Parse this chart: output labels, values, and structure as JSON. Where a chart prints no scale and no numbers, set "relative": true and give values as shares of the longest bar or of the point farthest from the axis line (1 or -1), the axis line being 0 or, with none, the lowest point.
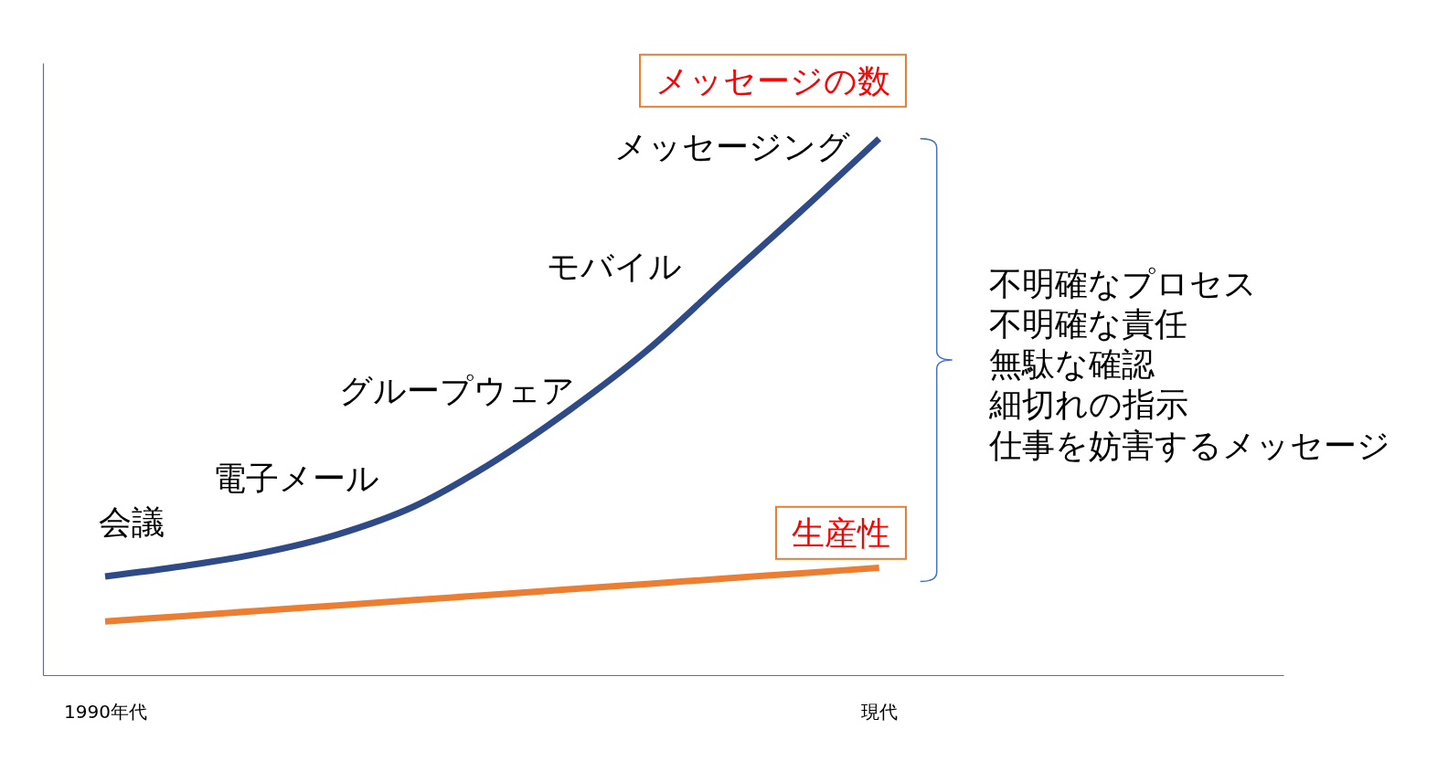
{
  "chart_data": {
    "type": "line",
    "relative": true,
    "categories": [
      "1990年代",
      null,
      null,
      null,
      null,
      null,
      null,
      null,
      null,
      null,
      "現代"
    ],
    "series": [
      {
        "name": "メッセージの数",
        "color": "#2e4a87",
        "values": [
          0.184,
          0.203,
          0.227,
          0.262,
          0.315,
          0.396,
          0.494,
          0.605,
          0.736,
          0.866,
          1
        ]
      },
      {
        "name": "生産性",
        "color": "#ed7d31",
        "values": [
          0.1,
          0.11,
          0.12,
          0.13,
          0.14,
          0.15,
          0.16,
          0.17,
          0.18,
          0.19,
          0.2
        ]
      }
    ],
    "annotations": [
      "会議",
      "電子メール",
      "グループウェア",
      "モバイル",
      "メッセージング",
      "不明確なプロセス",
      "不明確な責任",
      "無駄な確認",
      "細切れの指示",
      "仕事を妨害するメッセージ"
    ]
  }
}
